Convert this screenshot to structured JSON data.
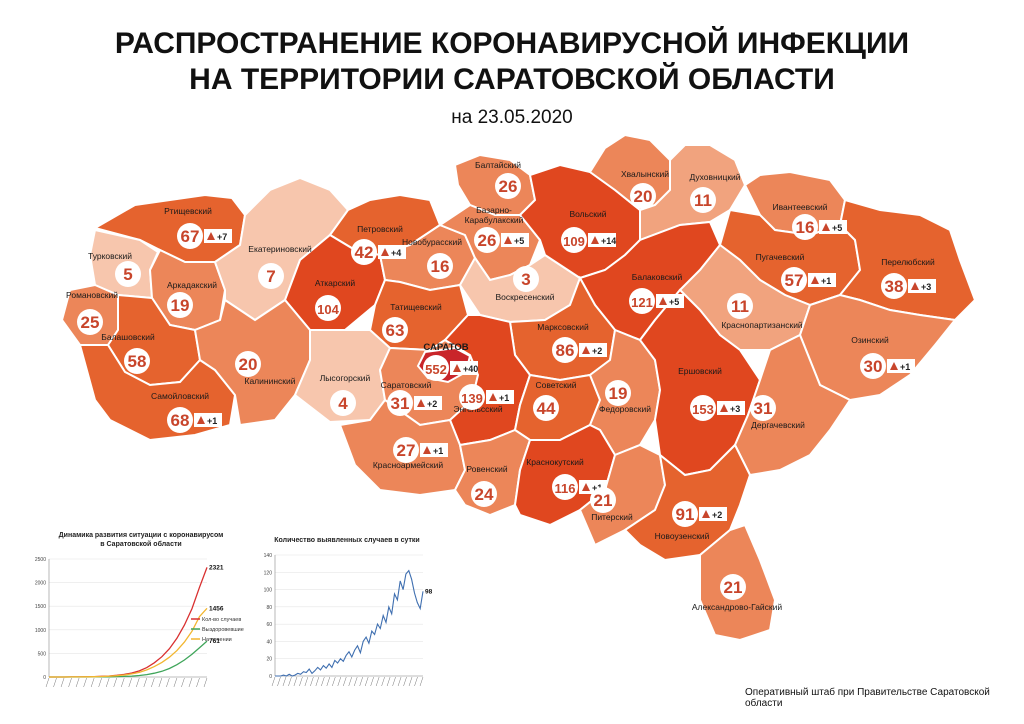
{
  "header": {
    "title_line1": "РАСПРОСТРАНЕНИЕ КОРОНАВИРУСНОЙ ИНФЕКЦИИ",
    "title_line2": "НА ТЕРРИТОРИИ САРАТОВСКОЙ ОБЛАСТИ",
    "date": "на 23.05.2020"
  },
  "colors": {
    "level_1": "#f7c6ad",
    "level_2": "#f1a37e",
    "level_3": "#ec8659",
    "level_4": "#e5632e",
    "level_5": "#e0471f",
    "level_6": "#c9252a",
    "border": "#ffffff"
  },
  "map": {
    "city": {
      "label": "САРАТОВ",
      "count": "552",
      "delta": "+40"
    },
    "districts": [
      {
        "id": "rtishchevsky",
        "name": "Ртищевский",
        "count": "67",
        "delta": "+7",
        "level": 4
      },
      {
        "id": "turkovsky",
        "name": "Турковский",
        "count": "5",
        "delta": "",
        "level": 1
      },
      {
        "id": "arkadaksky",
        "name": "Аркадакский",
        "count": "19",
        "delta": "",
        "level": 3
      },
      {
        "id": "romanovsky",
        "name": "Романовский",
        "count": "25",
        "delta": "",
        "level": 3
      },
      {
        "id": "balashovsky",
        "name": "Балашовский",
        "count": "58",
        "delta": "",
        "level": 4
      },
      {
        "id": "samoylovsky",
        "name": "Самойловский",
        "count": "68",
        "delta": "+1",
        "level": 4
      },
      {
        "id": "ekaterinovsky",
        "name": "Екатериновский",
        "count": "7",
        "delta": "",
        "level": 1
      },
      {
        "id": "petrovsky",
        "name": "Петровский",
        "count": "42",
        "delta": "+4",
        "level": 4
      },
      {
        "id": "atkarsky",
        "name": "Аткарский",
        "count": "104",
        "delta": "",
        "level": 5
      },
      {
        "id": "novoburassky",
        "name": "Новобурасский",
        "count": "16",
        "delta": "",
        "level": 3
      },
      {
        "id": "tatishchevsky",
        "name": "Татищевский",
        "count": "63",
        "delta": "",
        "level": 4
      },
      {
        "id": "kalininsky",
        "name": "Калининский",
        "count": "20",
        "delta": "",
        "level": 3
      },
      {
        "id": "lysogorsky",
        "name": "Лысогорский",
        "count": "4",
        "delta": "",
        "level": 1
      },
      {
        "id": "saratovsky",
        "name": "Саратовский",
        "count": "31",
        "delta": "+2",
        "level": 3
      },
      {
        "id": "baltaysky",
        "name": "Балтайский",
        "count": "26",
        "delta": "",
        "level": 3
      },
      {
        "id": "bazarno",
        "name": "Базарно-Карабулакский",
        "count": "26",
        "delta": "+5",
        "level": 3
      },
      {
        "id": "voskresensky",
        "name": "Воскресенский",
        "count": "3",
        "delta": "",
        "level": 1
      },
      {
        "id": "volsky",
        "name": "Вольский",
        "count": "109",
        "delta": "+14",
        "level": 5
      },
      {
        "id": "khvalynsky",
        "name": "Хвалынский",
        "count": "20",
        "delta": "",
        "level": 3
      },
      {
        "id": "dukhovnitsky",
        "name": "Духовницкий",
        "count": "11",
        "delta": "",
        "level": 2
      },
      {
        "id": "ivanteevsky",
        "name": "Ивантеевский",
        "count": "16",
        "delta": "+5",
        "level": 3
      },
      {
        "id": "pugachevsky",
        "name": "Пугачевский",
        "count": "57",
        "delta": "+1",
        "level": 4
      },
      {
        "id": "perelyubsky",
        "name": "Перелюбский",
        "count": "38",
        "delta": "+3",
        "level": 4
      },
      {
        "id": "balakovsky",
        "name": "Балаковский",
        "count": "121",
        "delta": "+5",
        "level": 5
      },
      {
        "id": "krasnopartizansky",
        "name": "Краснопартизанский",
        "count": "11",
        "delta": "",
        "level": 2
      },
      {
        "id": "marksovsky",
        "name": "Марксовский",
        "count": "86",
        "delta": "+2",
        "level": 4
      },
      {
        "id": "engelssky",
        "name": "Энгельсский",
        "count": "139",
        "delta": "+1",
        "level": 5
      },
      {
        "id": "sovetsky",
        "name": "Советский",
        "count": "44",
        "delta": "",
        "level": 4
      },
      {
        "id": "fedorovsky",
        "name": "Федоровский",
        "count": "19",
        "delta": "",
        "level": 3
      },
      {
        "id": "ershovsky",
        "name": "Ершовский",
        "count": "153",
        "delta": "+3",
        "level": 5
      },
      {
        "id": "ozinsky",
        "name": "Озинский",
        "count": "30",
        "delta": "+1",
        "level": 3
      },
      {
        "id": "dergachevsky",
        "name": "Дергачевский",
        "count": "31",
        "delta": "",
        "level": 3
      },
      {
        "id": "krasnoarmeysky",
        "name": "Красноармейский",
        "count": "27",
        "delta": "+1",
        "level": 3
      },
      {
        "id": "rovensky",
        "name": "Ровенский",
        "count": "24",
        "delta": "",
        "level": 3
      },
      {
        "id": "krasnokutsky",
        "name": "Краснокутский",
        "count": "116",
        "delta": "+1",
        "level": 5
      },
      {
        "id": "pitersky",
        "name": "Питерский",
        "count": "21",
        "delta": "",
        "level": 3
      },
      {
        "id": "novouzensky",
        "name": "Новоузенский",
        "count": "91",
        "delta": "+2",
        "level": 4
      },
      {
        "id": "aleksandrovo",
        "name": "Александрово-Гайский",
        "count": "21",
        "delta": "",
        "level": 3
      }
    ]
  },
  "chart_data": [
    {
      "type": "line",
      "title": "Динамика развития ситуации с коронавирусом в Саратовской области",
      "yticks": [
        "2500",
        "2000",
        "1500",
        "1000",
        "500",
        "0"
      ],
      "ylim": [
        0,
        2500
      ],
      "x_label_count": 22,
      "series": [
        {
          "name": "Кол-во случаев",
          "color": "#d93030",
          "end_label": "2321",
          "values": [
            0,
            0,
            1,
            2,
            3,
            5,
            8,
            14,
            22,
            35,
            55,
            85,
            130,
            200,
            300,
            430,
            600,
            820,
            1100,
            1450,
            1900,
            2321
          ]
        },
        {
          "name": "Выздоровевшие",
          "color": "#3fa55a",
          "end_label": "761",
          "values": [
            0,
            0,
            0,
            0,
            0,
            1,
            2,
            3,
            5,
            8,
            12,
            20,
            32,
            50,
            80,
            120,
            180,
            260,
            360,
            480,
            620,
            761
          ]
        },
        {
          "name": "На лечении",
          "color": "#f2b630",
          "end_label": "1456",
          "values": [
            0,
            0,
            1,
            2,
            3,
            4,
            6,
            11,
            17,
            27,
            43,
            65,
            98,
            150,
            220,
            310,
            420,
            560,
            740,
            970,
            1280,
            1456
          ]
        }
      ],
      "legend": "right"
    },
    {
      "type": "line",
      "title": "Количество выявленных случаев в сутки",
      "yticks": [
        "140",
        "120",
        "100",
        "80",
        "60",
        "40",
        "20",
        "0"
      ],
      "ylim": [
        0,
        140
      ],
      "end_label": "98",
      "series": [
        {
          "name": "",
          "color": "#3f6fb0",
          "values": [
            0,
            0,
            0,
            1,
            0,
            2,
            0,
            1,
            3,
            2,
            5,
            4,
            8,
            3,
            6,
            10,
            7,
            12,
            9,
            14,
            10,
            18,
            15,
            20,
            17,
            24,
            28,
            22,
            30,
            35,
            27,
            40,
            45,
            38,
            52,
            48,
            60,
            55,
            70,
            62,
            80,
            72,
            95,
            88,
            110,
            100,
            118,
            122,
            112,
            96,
            85,
            78,
            98
          ]
        }
      ]
    }
  ],
  "footer": {
    "credit": "Оперативный штаб при Правительстве Саратовской области"
  }
}
